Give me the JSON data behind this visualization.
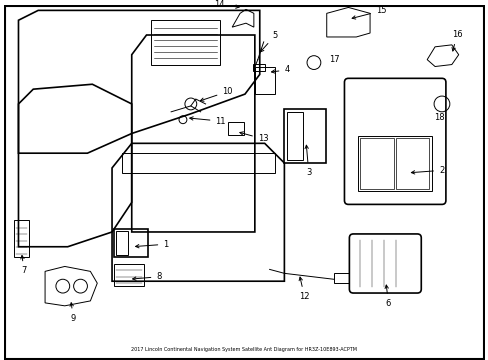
{
  "title": "2017 Lincoln Continental Navigation System Satellite Ant Diagram for HR3Z-10E893-ACPTM",
  "background_color": "#ffffff",
  "border_color": "#000000",
  "line_color": "#000000",
  "label_color": "#000000",
  "figsize": [
    4.89,
    3.6
  ],
  "dpi": 100
}
